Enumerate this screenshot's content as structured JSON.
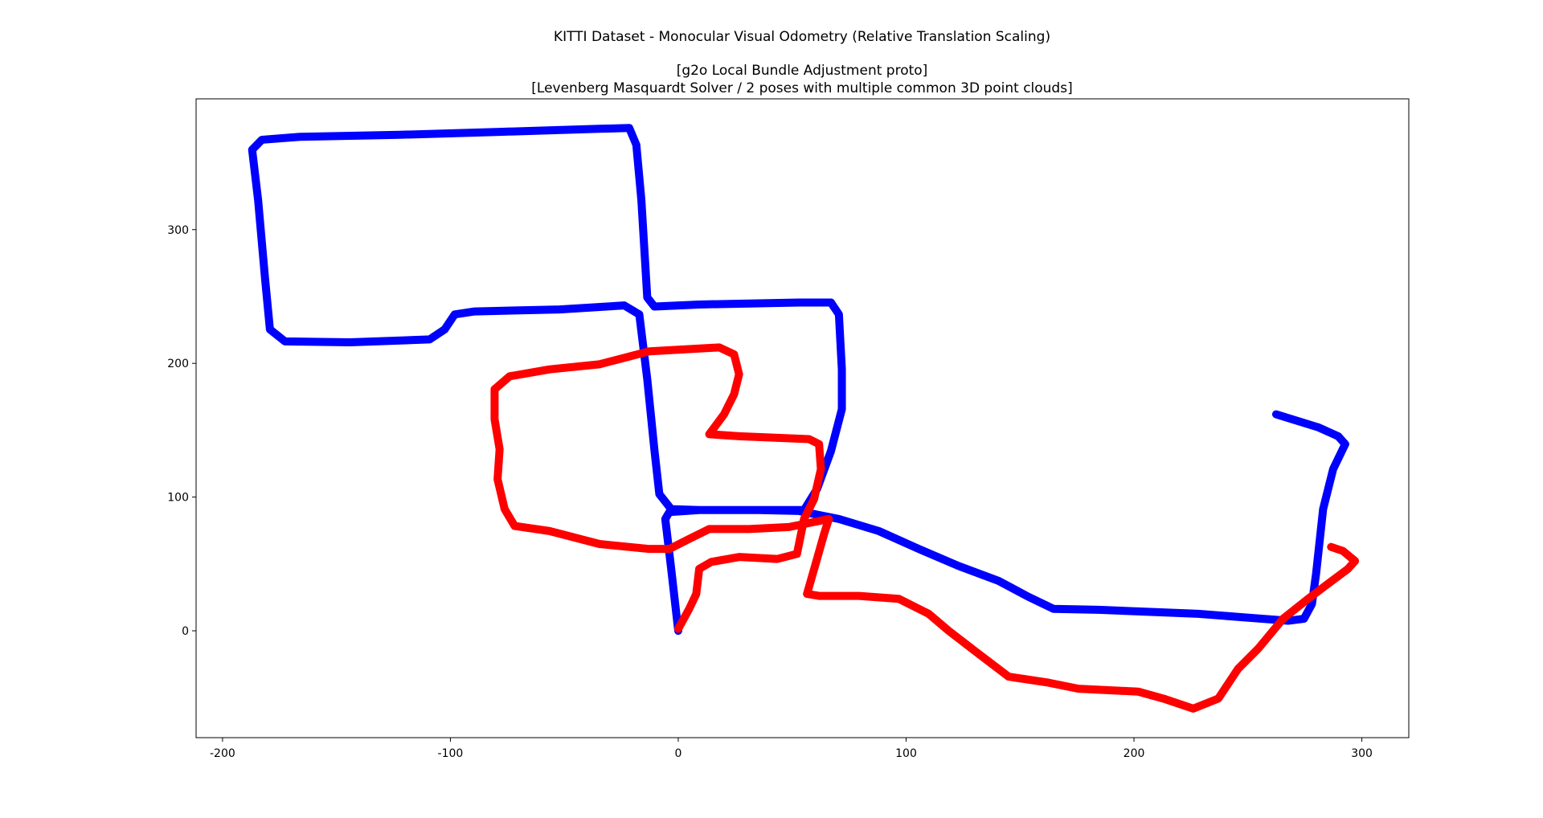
{
  "chart_data": {
    "type": "line",
    "title": "KITTI Dataset - Monocular Visual Odometry (Relative Translation Scaling)",
    "subtitle": [
      "[g2o Local Bundle Adjustment proto]",
      "[Levenberg Masquardt Solver / 2 poses with multiple common 3D point clouds]"
    ],
    "xlim": [
      -211.6,
      320.6
    ],
    "ylim": [
      -79.9,
      397.8
    ],
    "xticks": [
      -200,
      -100,
      0,
      100,
      200,
      300
    ],
    "yticks": [
      0,
      100,
      200,
      300
    ],
    "grid": false,
    "series": [
      {
        "color": "#0000ff",
        "x": [
          0,
          -3.1,
          -5.7,
          -3.9,
          9.2,
          35.5,
          55.2,
          60.9,
          67,
          71.8,
          71.8,
          70.5,
          67,
          53,
          9.2,
          -10.5,
          -13.6,
          -16.2,
          -18.4,
          -21.5,
          -34.6,
          -78.4,
          -122.2,
          -166,
          -182.7,
          -187,
          -184.4,
          -181.3,
          -179.2,
          -172.6,
          -144.1,
          -109.1,
          -102.5,
          -98.1,
          -89.4,
          -52.1,
          -23.7,
          -17.1,
          -13.6,
          -10.5,
          -8.3,
          -3.1,
          9.2,
          35.5,
          53,
          70.5,
          88,
          105.6,
          123,
          140.6,
          153.7,
          164.7,
          184.4,
          228.2,
          267.6,
          274.6,
          278.1,
          279.9,
          283,
          287.4,
          292.7,
          289.6,
          280.8,
          262.4
        ],
        "values": [
          0,
          46.3,
          83.6,
          88.8,
          90.3,
          90.3,
          90.3,
          106,
          134.3,
          165.7,
          195.5,
          236.6,
          245.5,
          245.5,
          244,
          242.5,
          249.3,
          322.4,
          363.4,
          376,
          375.4,
          373.1,
          370.9,
          369.4,
          367.2,
          359.7,
          322.4,
          262.7,
          225.4,
          216.4,
          215.7,
          217.9,
          225.4,
          236.6,
          238.8,
          240.3,
          243.3,
          236.6,
          188.1,
          135.8,
          102.2,
          91,
          90.3,
          90.3,
          89.6,
          83.6,
          74.6,
          61.2,
          48.5,
          37.3,
          25.4,
          16.4,
          15.7,
          12.7,
          7.5,
          9,
          20.1,
          42.5,
          91,
          120.9,
          139.6,
          145.5,
          152.2,
          161.9
        ]
      },
      {
        "color": "#ff0000",
        "x": [
          0,
          4.8,
          7.9,
          9.2,
          14.5,
          26.7,
          43.4,
          52.1,
          55.2,
          59.6,
          62.6,
          61.8,
          57.4,
          26.7,
          13.6,
          20.1,
          24.5,
          26.7,
          24.5,
          18,
          -12.7,
          -34.6,
          -56.5,
          -74,
          -80.6,
          -80.6,
          -78.4,
          -79.3,
          -76.2,
          -71.8,
          -56.5,
          -34.6,
          -12.7,
          -3.9,
          4.8,
          13.6,
          31.1,
          48.6,
          66.1,
          64,
          60.9,
          56.5,
          61.8,
          79.3,
          96.8,
          109.9,
          118.7,
          131.8,
          145,
          162.5,
          175.6,
          201.9,
          212.9,
          226,
          237,
          245.7,
          254.5,
          265.4,
          276.4,
          285.1,
          293.9,
          297,
          291.7,
          286.5
        ],
        "values": [
          1.5,
          16.4,
          27.6,
          46.3,
          51.5,
          55.2,
          53.7,
          57.5,
          83.6,
          98.5,
          120.9,
          139.6,
          143.3,
          145.5,
          147,
          161.9,
          176.9,
          191.8,
          206.7,
          211.9,
          209,
          199.3,
          195.5,
          190.3,
          180.6,
          158.2,
          135.8,
          113.4,
          91,
          78.4,
          74.6,
          64.9,
          61.2,
          61.2,
          68.7,
          76.1,
          76.1,
          77.6,
          83.6,
          72.4,
          53.7,
          27.6,
          26.1,
          26.1,
          23.9,
          12.7,
          0,
          -17.2,
          -34.3,
          -38.8,
          -43.3,
          -45.5,
          -50.7,
          -58.2,
          -50.7,
          -28.4,
          -13.4,
          9,
          23.9,
          35.1,
          46.3,
          52.2,
          59.7,
          62.7
        ]
      }
    ]
  }
}
